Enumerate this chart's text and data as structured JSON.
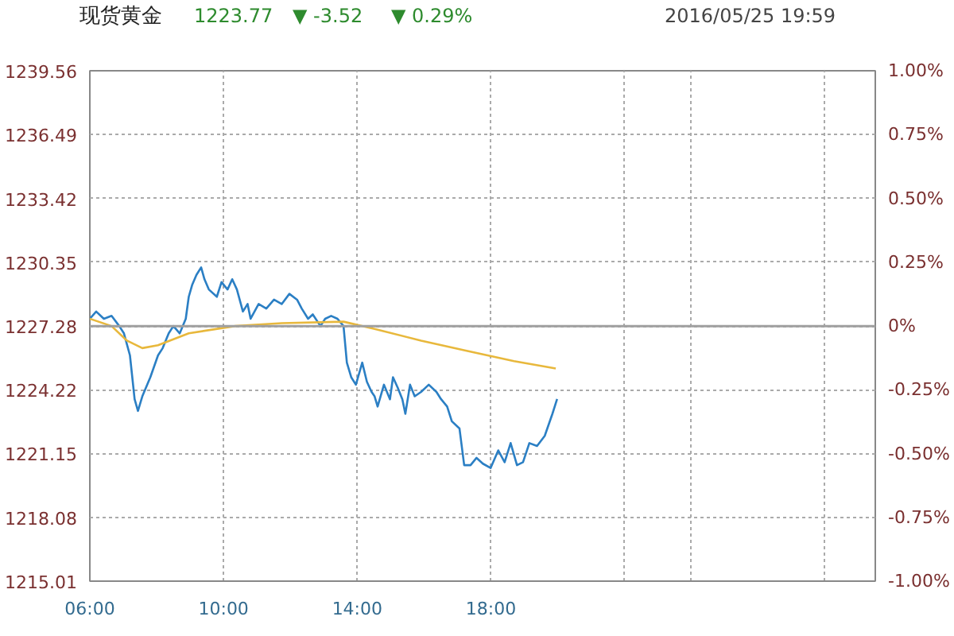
{
  "chart_data": {
    "type": "line",
    "title": "现货黄金",
    "annotations": [
      "1223.77",
      "▼ -3.52",
      "▼ 0.29%",
      "2016/05/25 19:59"
    ],
    "xlim": [
      6,
      29.5
    ],
    "xticks": [
      {
        "value": 6,
        "label": "06:00"
      },
      {
        "value": 10,
        "label": "10:00"
      },
      {
        "value": 14,
        "label": "14:00"
      },
      {
        "value": 18,
        "label": "18:00"
      },
      {
        "value": 22,
        "label": null
      },
      {
        "value": 24,
        "label": null
      },
      {
        "value": 28,
        "label": null
      }
    ],
    "ylim": [
      1215.01,
      1239.56
    ],
    "yticks": [
      1215.01,
      1218.08,
      1221.15,
      1224.22,
      1227.28,
      1230.35,
      1233.42,
      1236.49,
      1239.56
    ],
    "y2lim": [
      -1,
      1
    ],
    "y2ticks": [
      {
        "value": -1,
        "label": "-1.00%"
      },
      {
        "value": -0.75,
        "label": "-0.75%"
      },
      {
        "value": -0.5,
        "label": "-0.50%"
      },
      {
        "value": -0.25,
        "label": "-0.25%"
      },
      {
        "value": 0,
        "label": "0%"
      },
      {
        "value": 0.25,
        "label": "0.25%"
      },
      {
        "value": 0.5,
        "label": "0.50%"
      },
      {
        "value": 0.75,
        "label": "0.75%"
      },
      {
        "value": 1,
        "label": "1.00%"
      }
    ],
    "grid": true,
    "ref_lines": [
      {
        "axis": "y",
        "value": 1227.28,
        "color": "#a0a0a0"
      }
    ],
    "series": [
      {
        "color": "#2b7fc4",
        "x": [
          6.0,
          6.19,
          6.42,
          6.65,
          6.88,
          7.02,
          7.2,
          7.34,
          7.44,
          7.57,
          7.81,
          8.04,
          8.18,
          8.36,
          8.5,
          8.69,
          8.87,
          8.96,
          9.06,
          9.19,
          9.33,
          9.43,
          9.56,
          9.8,
          9.94,
          10.12,
          10.26,
          10.4,
          10.58,
          10.72,
          10.81,
          11.05,
          11.28,
          11.51,
          11.74,
          11.97,
          12.2,
          12.34,
          12.53,
          12.67,
          12.9,
          13.04,
          13.22,
          13.41,
          13.59,
          13.69,
          13.82,
          13.96,
          14.15,
          14.29,
          14.43,
          14.52,
          14.61,
          14.8,
          14.98,
          15.07,
          15.21,
          15.35,
          15.44,
          15.58,
          15.72,
          15.91,
          16.14,
          16.37,
          16.51,
          16.69,
          16.83,
          17.06,
          17.2,
          17.39,
          17.57,
          17.76,
          17.99,
          18.22,
          18.41,
          18.59,
          18.78,
          18.96,
          19.15,
          19.38,
          19.61,
          19.84,
          19.98
        ],
        "values": [
          1227.63,
          1227.98,
          1227.63,
          1227.77,
          1227.28,
          1226.93,
          1225.87,
          1223.76,
          1223.2,
          1223.9,
          1224.82,
          1225.87,
          1226.22,
          1226.93,
          1227.28,
          1226.93,
          1227.63,
          1228.69,
          1229.25,
          1229.74,
          1230.1,
          1229.53,
          1229.04,
          1228.69,
          1229.39,
          1229.04,
          1229.53,
          1229.04,
          1227.98,
          1228.34,
          1227.63,
          1228.34,
          1228.12,
          1228.55,
          1228.34,
          1228.83,
          1228.55,
          1228.12,
          1227.63,
          1227.84,
          1227.28,
          1227.63,
          1227.77,
          1227.63,
          1227.28,
          1225.52,
          1224.82,
          1224.46,
          1225.52,
          1224.6,
          1224.11,
          1223.9,
          1223.41,
          1224.46,
          1223.76,
          1224.82,
          1224.32,
          1223.76,
          1223.06,
          1224.46,
          1223.9,
          1224.11,
          1224.46,
          1224.11,
          1223.76,
          1223.41,
          1222.7,
          1222.35,
          1220.59,
          1220.59,
          1220.94,
          1220.66,
          1220.45,
          1221.3,
          1220.73,
          1221.65,
          1220.59,
          1220.73,
          1221.65,
          1221.51,
          1222.0,
          1223.06,
          1223.77
        ]
      },
      {
        "color": "#e8b83c",
        "x": [
          6.0,
          6.65,
          7.11,
          7.57,
          8.04,
          8.96,
          10.35,
          11.74,
          13.59,
          14.52,
          15.91,
          17.3,
          18.69,
          19.94
        ],
        "values": [
          1227.63,
          1227.28,
          1226.58,
          1226.22,
          1226.36,
          1226.93,
          1227.28,
          1227.42,
          1227.49,
          1227.14,
          1226.58,
          1226.08,
          1225.59,
          1225.24
        ]
      }
    ]
  }
}
